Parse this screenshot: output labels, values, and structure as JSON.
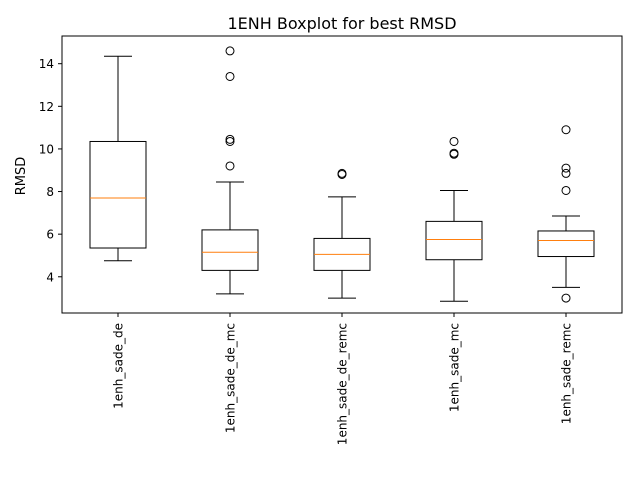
{
  "chart_data": {
    "type": "boxplot",
    "title": "1ENH Boxplot for best RMSD",
    "xlabel": "",
    "ylabel": "RMSD",
    "ylim": [
      2.3,
      15.3
    ],
    "yticks": [
      4,
      6,
      8,
      10,
      12,
      14
    ],
    "ytick_labels": [
      "4",
      "6",
      "8",
      "10",
      "12",
      "14"
    ],
    "xtick_rotation": "vertical",
    "grid": false,
    "legend": "none",
    "colors": {
      "box": "#000000",
      "median": "#ff7f0e",
      "flier": "#000000"
    },
    "categories": [
      "1enh_sade_de",
      "1enh_sade_de_mc",
      "1enh_sade_de_remc",
      "1enh_sade_mc",
      "1enh_sade_remc"
    ],
    "boxes": [
      {
        "whisker_low": 4.75,
        "q1": 5.35,
        "median": 7.7,
        "q3": 10.35,
        "whisker_high": 14.35,
        "fliers": []
      },
      {
        "whisker_low": 3.2,
        "q1": 4.3,
        "median": 5.15,
        "q3": 6.2,
        "whisker_high": 8.45,
        "fliers": [
          9.2,
          10.35,
          10.45,
          13.4,
          14.6
        ]
      },
      {
        "whisker_low": 3.0,
        "q1": 4.3,
        "median": 5.05,
        "q3": 5.8,
        "whisker_high": 7.75,
        "fliers": [
          8.8,
          8.85
        ]
      },
      {
        "whisker_low": 2.85,
        "q1": 4.8,
        "median": 5.75,
        "q3": 6.6,
        "whisker_high": 8.05,
        "fliers": [
          9.75,
          9.8,
          10.35
        ]
      },
      {
        "whisker_low": 3.5,
        "q1": 4.95,
        "median": 5.7,
        "q3": 6.15,
        "whisker_high": 6.85,
        "fliers": [
          3.0,
          8.05,
          8.85,
          9.1,
          10.9
        ]
      }
    ]
  }
}
